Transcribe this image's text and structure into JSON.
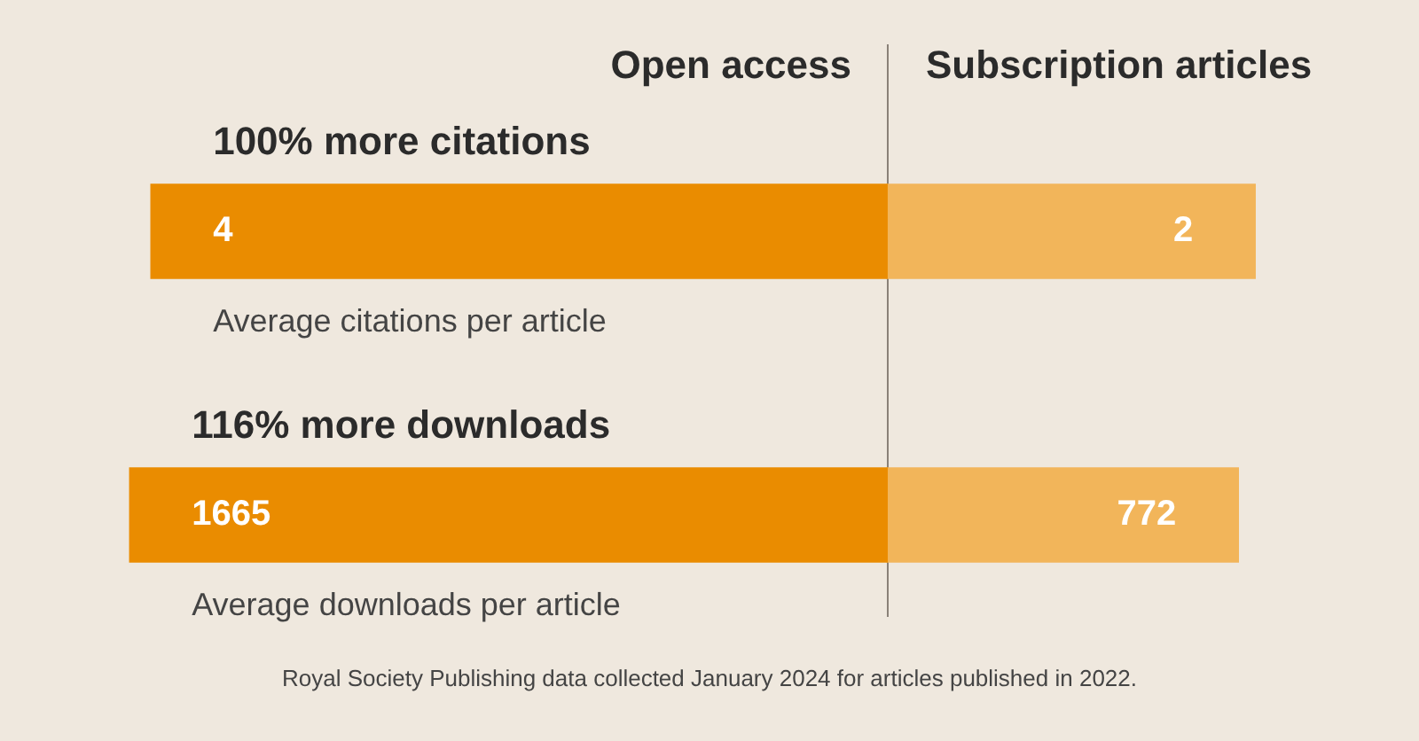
{
  "chart_data": [
    {
      "type": "bar",
      "orientation": "horizontal",
      "stacked": true,
      "title": "100% more citations",
      "xlabel": "Average citations per article",
      "categories": [
        null
      ],
      "xlim": [
        -0.82,
        6.89
      ],
      "ref_lines": [
        {
          "axis": "x",
          "value": 4,
          "color": "#8a8178"
        }
      ],
      "data_labels": true,
      "series": [
        {
          "name": "Open access",
          "color": "#ea8c00",
          "values": [
            4
          ]
        },
        {
          "name": "Subscription articles",
          "color": "#f2b55a",
          "values": [
            2
          ]
        }
      ]
    },
    {
      "type": "bar",
      "orientation": "horizontal",
      "stacked": true,
      "title": "116% more downloads",
      "xlabel": "Average downloads per article",
      "categories": [
        null
      ],
      "xlim": [
        -285,
        2834
      ],
      "ref_lines": [
        {
          "axis": "x",
          "value": 1665,
          "color": "#8a8178"
        }
      ],
      "data_labels": true,
      "annotations": [
        "Royal Society Publishing data collected January 2024 for articles published in 2022."
      ],
      "series": [
        {
          "color": "#ea8c00",
          "values": [
            1665
          ]
        },
        {
          "color": "#f2b55a",
          "values": [
            772
          ]
        }
      ]
    }
  ]
}
